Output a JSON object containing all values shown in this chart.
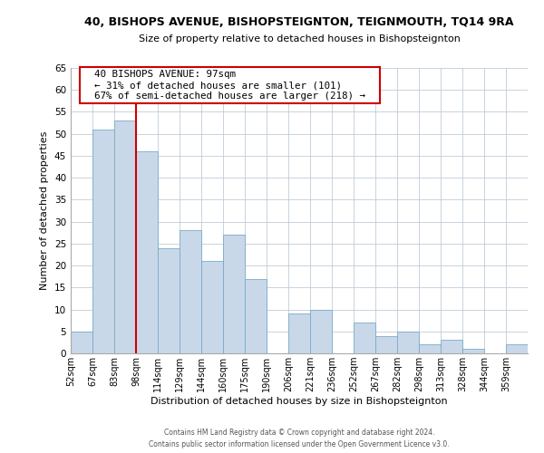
{
  "title": "40, BISHOPS AVENUE, BISHOPSTEIGNTON, TEIGNMOUTH, TQ14 9RA",
  "subtitle": "Size of property relative to detached houses in Bishopsteignton",
  "xlabel": "Distribution of detached houses by size in Bishopsteignton",
  "ylabel": "Number of detached properties",
  "footer_line1": "Contains HM Land Registry data © Crown copyright and database right 2024.",
  "footer_line2": "Contains public sector information licensed under the Open Government Licence v3.0.",
  "bin_labels": [
    "52sqm",
    "67sqm",
    "83sqm",
    "98sqm",
    "114sqm",
    "129sqm",
    "144sqm",
    "160sqm",
    "175sqm",
    "190sqm",
    "206sqm",
    "221sqm",
    "236sqm",
    "252sqm",
    "267sqm",
    "282sqm",
    "298sqm",
    "313sqm",
    "328sqm",
    "344sqm",
    "359sqm"
  ],
  "bar_values": [
    5,
    51,
    53,
    46,
    24,
    28,
    21,
    27,
    17,
    0,
    9,
    10,
    0,
    7,
    4,
    5,
    2,
    3,
    1,
    0,
    2
  ],
  "bar_color": "#c8d8e8",
  "bar_edge_color": "#7aaac8",
  "ylim": [
    0,
    65
  ],
  "yticks": [
    0,
    5,
    10,
    15,
    20,
    25,
    30,
    35,
    40,
    45,
    50,
    55,
    60,
    65
  ],
  "vline_x": 3,
  "vline_color": "#cc0000",
  "annotation_title": "40 BISHOPS AVENUE: 97sqm",
  "annotation_line1": "← 31% of detached houses are smaller (101)",
  "annotation_line2": "67% of semi-detached houses are larger (218) →",
  "annotation_box_color": "#cc0000",
  "background_color": "#ffffff",
  "grid_color": "#c0ccd8"
}
